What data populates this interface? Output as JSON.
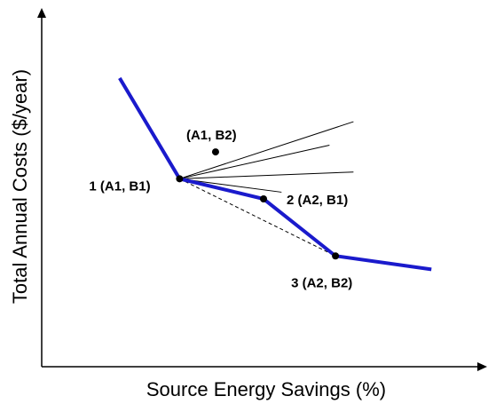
{
  "chart_data": {
    "type": "line",
    "title": "",
    "xlabel": "Source Energy Savings (%)",
    "ylabel": "Total Annual Costs ($/year)",
    "grid": false,
    "legend": "none",
    "colors": {
      "curve": "#1a1acc",
      "axes": "#000000",
      "rays": "#000000",
      "points": "#000000"
    },
    "series": [
      {
        "values": [
          [
            13,
            86
          ],
          [
            23,
            56
          ],
          [
            37,
            50
          ],
          [
            49,
            33
          ],
          [
            65,
            29
          ]
        ]
      }
    ],
    "dashed_connector": [
      [
        23,
        56
      ],
      [
        49,
        33
      ]
    ],
    "candidate_rays": [
      {
        "from": [
          23,
          56
        ],
        "to": [
          52,
          73
        ]
      },
      {
        "from": [
          23,
          56
        ],
        "to": [
          48,
          66
        ]
      },
      {
        "from": [
          23,
          56
        ],
        "to": [
          52,
          58
        ]
      },
      {
        "from": [
          23,
          56
        ],
        "to": [
          40,
          52
        ]
      }
    ],
    "points": [
      {
        "x": 23,
        "y": 56,
        "label": "1 (A1, B1)"
      },
      {
        "x": 37,
        "y": 50,
        "label": "2 (A2, B1)"
      },
      {
        "x": 49,
        "y": 33,
        "label": "3 (A2, B2)"
      },
      {
        "x": 29,
        "y": 64,
        "label": "(A1, B2)"
      }
    ],
    "xlim": [
      0,
      70
    ],
    "ylim": [
      0,
      100
    ]
  }
}
